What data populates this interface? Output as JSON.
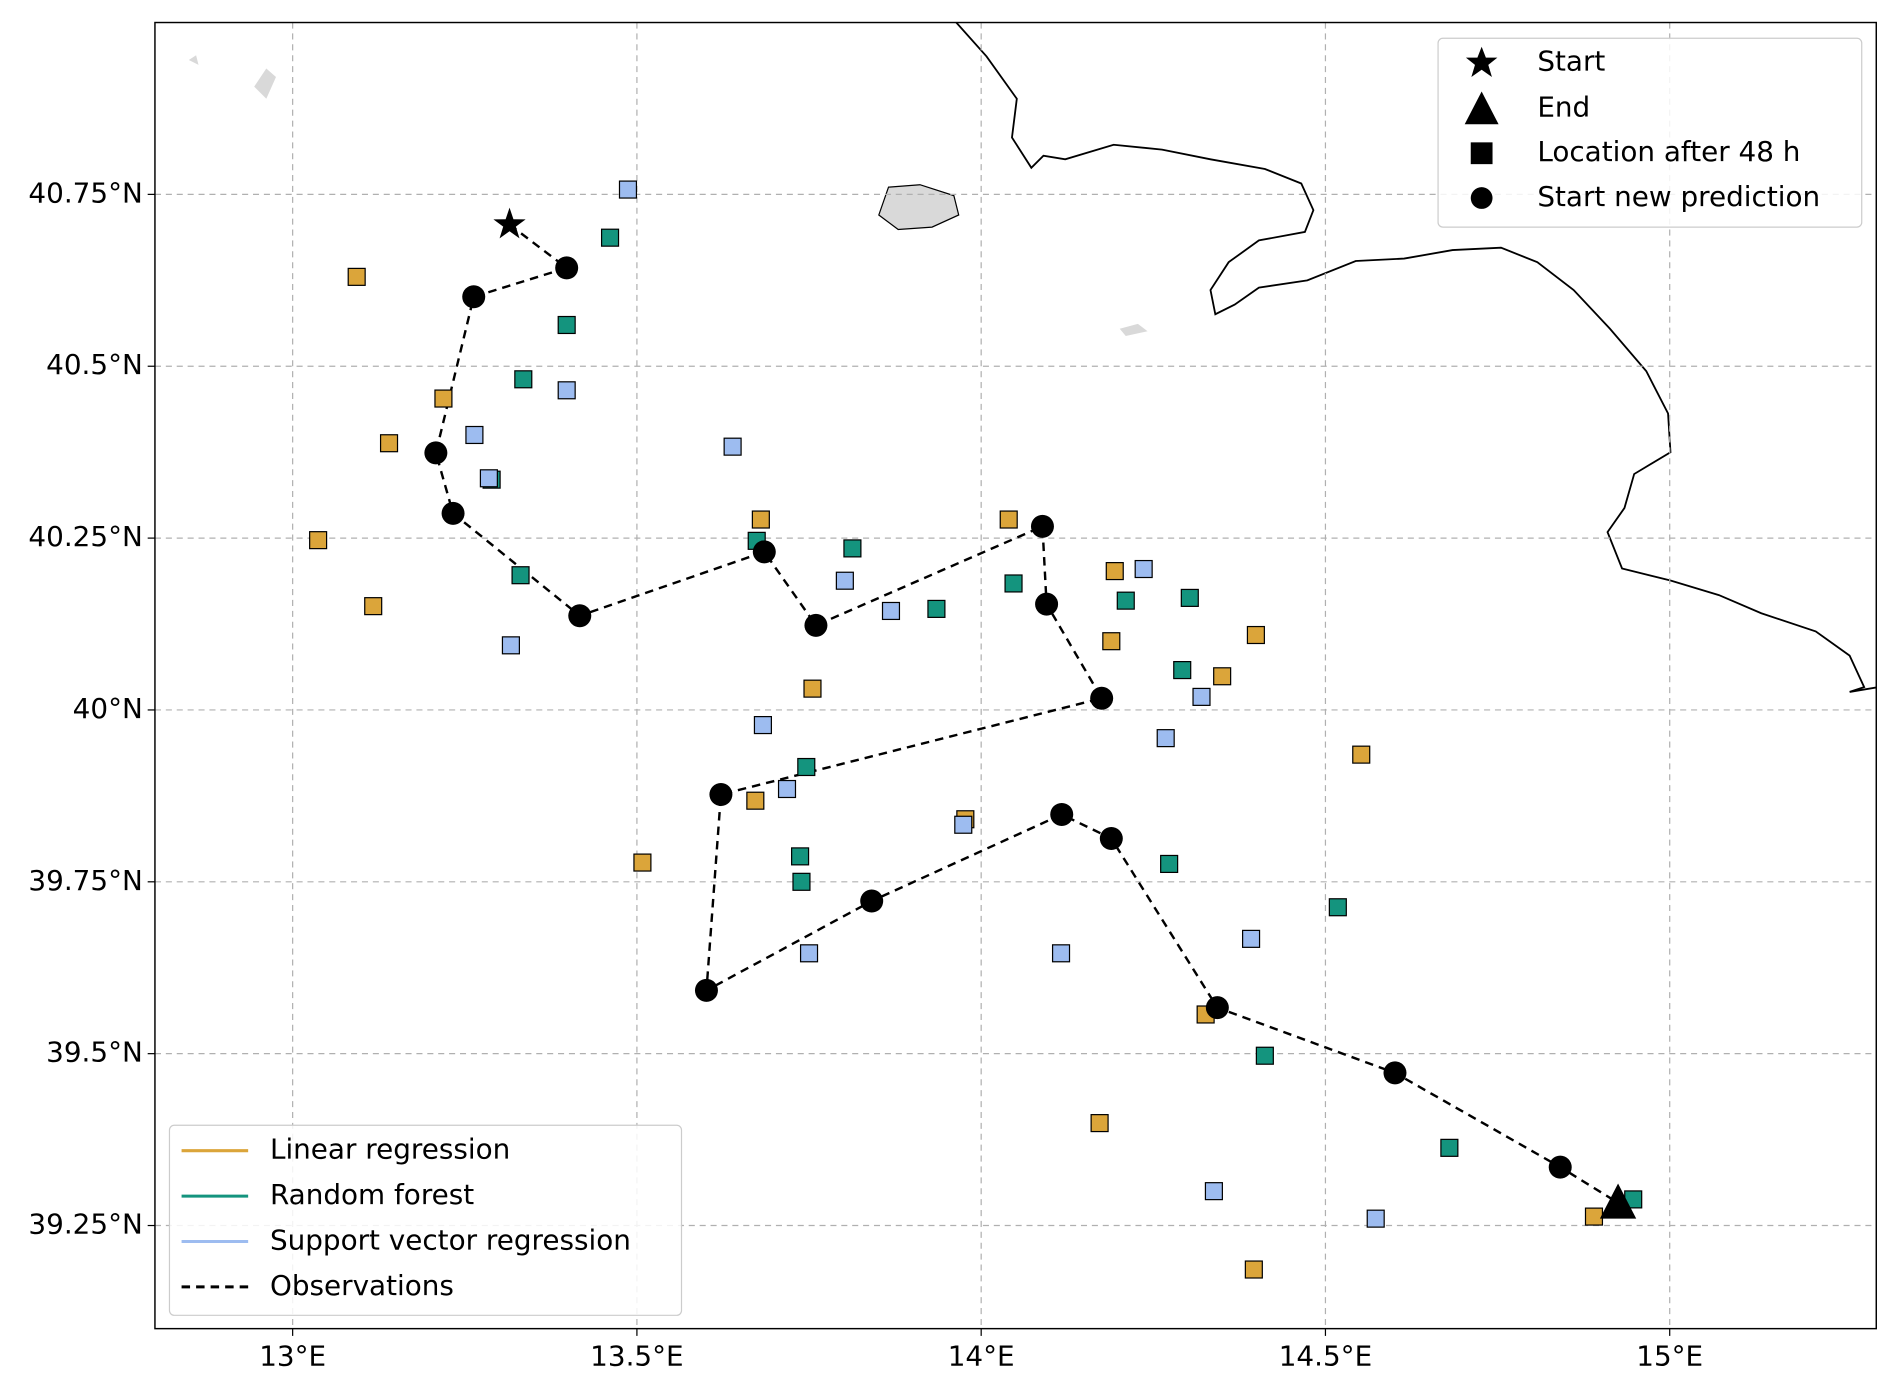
{
  "chart_data": {
    "type": "trajectory",
    "xlim": [
      12.8,
      15.3
    ],
    "ylim": [
      39.1,
      41.0
    ],
    "xticks": [
      {
        "value": 13,
        "label": "13°E"
      },
      {
        "value": 13.5,
        "label": "13.5°E"
      },
      {
        "value": 14,
        "label": "14°E"
      },
      {
        "value": 14.5,
        "label": "14.5°E"
      },
      {
        "value": 15,
        "label": "15°E"
      }
    ],
    "yticks": [
      {
        "value": 39.25,
        "label": "39.25°N"
      },
      {
        "value": 39.5,
        "label": "39.5°N"
      },
      {
        "value": 39.75,
        "label": "39.75°N"
      },
      {
        "value": 40,
        "label": "40°N"
      },
      {
        "value": 40.25,
        "label": "40.25°N"
      },
      {
        "value": 40.5,
        "label": "40.5°N"
      },
      {
        "value": 40.75,
        "label": "40.75°N"
      }
    ],
    "grid": true,
    "series": [
      {
        "name": "Linear regression",
        "color": "#dba53a",
        "marker": "square",
        "x": [
          13.093,
          13.219,
          13.14,
          13.037,
          13.117,
          13.68,
          13.755,
          13.672,
          13.508,
          14.04,
          14.194,
          14.189,
          14.399,
          14.35,
          14.552,
          13.977,
          14.326,
          14.172,
          14.89,
          14.396
        ],
        "values": [
          40.63,
          40.453,
          40.388,
          40.247,
          40.151,
          40.277,
          40.031,
          39.868,
          39.778,
          40.277,
          40.202,
          40.1,
          40.109,
          40.049,
          39.935,
          39.841,
          39.557,
          39.399,
          39.263,
          39.186
        ]
      },
      {
        "name": "Random forest",
        "color": "#14947e",
        "marker": "square",
        "x": [
          13.461,
          13.398,
          13.335,
          13.289,
          13.331,
          13.674,
          13.813,
          13.935,
          14.047,
          14.21,
          14.303,
          14.292,
          13.746,
          13.737,
          13.739,
          14.273,
          14.518,
          14.412,
          14.68,
          14.947
        ],
        "values": [
          40.687,
          40.56,
          40.481,
          40.335,
          40.196,
          40.246,
          40.235,
          40.147,
          40.184,
          40.159,
          40.163,
          40.058,
          39.917,
          39.787,
          39.75,
          39.776,
          39.713,
          39.497,
          39.363,
          39.288
        ]
      },
      {
        "name": "Support vector regression",
        "color": "#9dbcf0",
        "marker": "square",
        "x": [
          13.487,
          13.398,
          13.264,
          13.285,
          13.317,
          13.639,
          13.802,
          13.869,
          14.236,
          14.32,
          14.268,
          13.683,
          13.718,
          13.974,
          13.75,
          14.116,
          14.392,
          14.338,
          14.573
        ],
        "values": [
          40.757,
          40.465,
          40.4,
          40.337,
          40.094,
          40.383,
          40.188,
          40.144,
          40.205,
          40.019,
          39.959,
          39.978,
          39.885,
          39.833,
          39.646,
          39.646,
          39.667,
          39.3,
          39.26
        ]
      },
      {
        "name": "Observations",
        "color": "#000000",
        "linestyle": "dashed",
        "x": [
          13.315,
          13.398,
          13.263,
          13.208,
          13.233,
          13.417,
          13.685,
          13.76,
          14.089,
          14.095,
          14.175,
          13.622,
          13.601,
          13.841,
          14.117,
          14.189,
          14.343,
          14.601,
          14.841,
          14.925
        ],
        "values": [
          40.706,
          40.643,
          40.601,
          40.374,
          40.286,
          40.137,
          40.23,
          40.123,
          40.267,
          40.154,
          40.017,
          39.877,
          39.592,
          39.722,
          39.848,
          39.813,
          39.567,
          39.472,
          39.335,
          39.283
        ]
      }
    ],
    "start": {
      "name": "Start",
      "x": 13.315,
      "y": 40.706
    },
    "end": {
      "name": "End",
      "x": 14.925,
      "y": 39.283
    },
    "location_marker": {
      "name": "Location after 48 h"
    },
    "restarts": {
      "name": "Start new prediction",
      "x": [
        13.398,
        13.263,
        13.208,
        13.233,
        13.417,
        13.685,
        13.76,
        14.089,
        14.095,
        14.175,
        13.622,
        14.117,
        14.189,
        13.841,
        13.601,
        14.343,
        14.601,
        14.841
      ],
      "values": [
        40.643,
        40.601,
        40.374,
        40.286,
        40.137,
        40.23,
        40.123,
        40.267,
        40.154,
        40.017,
        39.877,
        39.848,
        39.813,
        39.722,
        39.592,
        39.567,
        39.472,
        39.335
      ]
    }
  }
}
